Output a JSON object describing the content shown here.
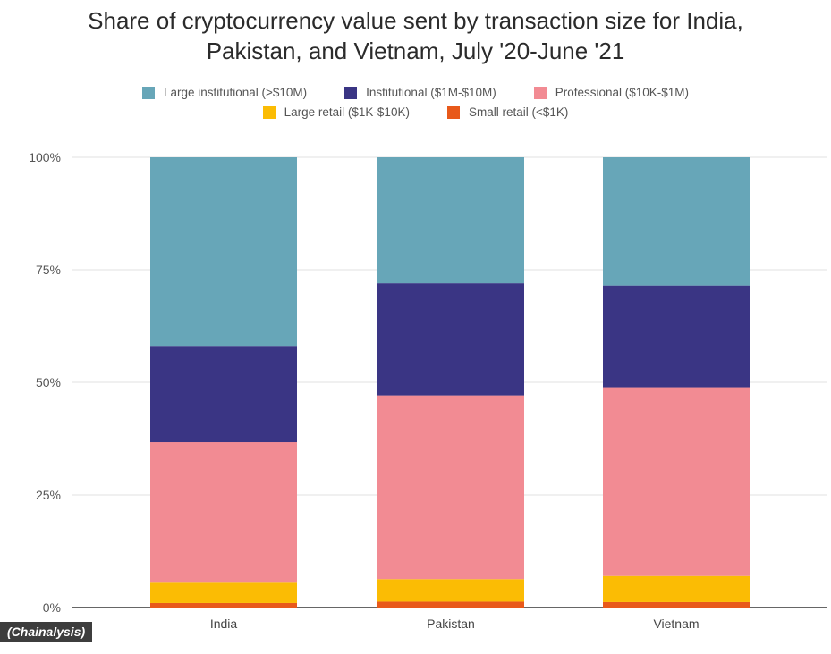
{
  "chart_data": {
    "type": "bar",
    "stacked": true,
    "title_lines": [
      "Share of cryptocurrency value sent by transaction size for India,",
      "Pakistan, and Vietnam, July '20-June '21"
    ],
    "xlabel": "",
    "ylabel": "",
    "ylim": [
      0,
      100
    ],
    "y_ticks": [
      "0%",
      "25%",
      "50%",
      "75%",
      "100%"
    ],
    "y_tick_values": [
      0,
      25,
      50,
      75,
      100
    ],
    "grid": true,
    "legend_position": "top",
    "categories": [
      "India",
      "Pakistan",
      "Vietnam"
    ],
    "series": [
      {
        "name": "Small retail (<$1K)",
        "color": "#E8591A",
        "values": [
          1.0,
          1.3,
          1.2
        ]
      },
      {
        "name": "Large retail ($1K-$10K)",
        "color": "#FBBC04",
        "values": [
          4.7,
          5.0,
          5.8
        ]
      },
      {
        "name": "Professional ($10K-$1M)",
        "color": "#F28B93",
        "values": [
          31.0,
          40.8,
          41.9
        ]
      },
      {
        "name": "Institutional ($1M-$10M)",
        "color": "#3A3584",
        "values": [
          21.4,
          24.9,
          22.6
        ]
      },
      {
        "name": "Large institutional (>$10M)",
        "color": "#67A6B8",
        "values": [
          41.9,
          28.0,
          28.5
        ]
      }
    ],
    "legend_rows": [
      [
        "Large institutional (>$10M)",
        "Institutional ($1M-$10M)",
        "Professional ($10K-$1M)"
      ],
      [
        "Large retail ($1K-$10K)",
        "Small retail (<$1K)"
      ]
    ],
    "source": "(Chainalysis)"
  }
}
